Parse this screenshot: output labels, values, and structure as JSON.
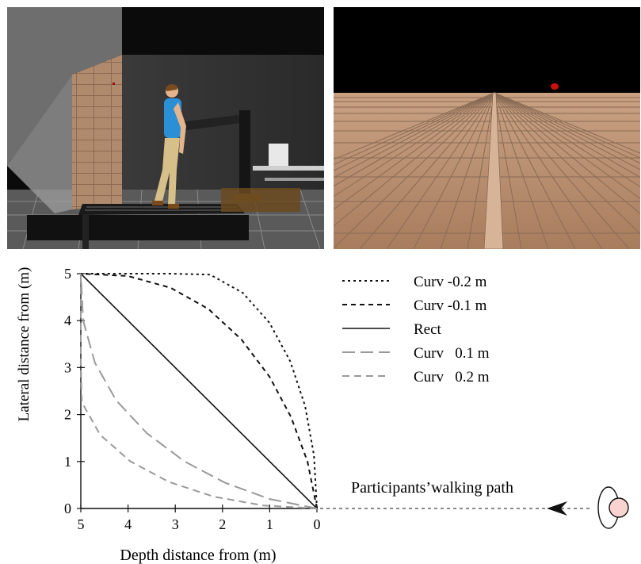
{
  "chart_data": {
    "type": "line",
    "xlabel": "Depth distance from  (m)",
    "ylabel": "Lateral distance from  (m)",
    "x_ticks": [
      "5",
      "4",
      "3",
      "2",
      "1",
      "0"
    ],
    "y_ticks": [
      "0",
      "1",
      "2",
      "3",
      "4",
      "5"
    ],
    "xlim": [
      5,
      0
    ],
    "ylim": [
      0,
      5
    ],
    "legend_position": "top-right",
    "series": [
      {
        "name": "Curv -0.2 m",
        "style": "short-dash",
        "color": "#111111",
        "x": [
          0,
          0.063,
          0.251,
          0.565,
          1.005,
          1.57,
          2.261,
          3.077,
          4.019,
          5
        ],
        "y": [
          0,
          1.133,
          2.185,
          3.133,
          3.954,
          4.592,
          4.979,
          5.0,
          5.0,
          5
        ]
      },
      {
        "name": "Curv -0.1 m",
        "style": "dash",
        "color": "#111111",
        "x": [
          0,
          0.2,
          0.55,
          1.0,
          1.6,
          2.3,
          3.1,
          4.0,
          5
        ],
        "y": [
          0,
          1.0,
          1.95,
          2.8,
          3.6,
          4.25,
          4.7,
          4.95,
          5
        ]
      },
      {
        "name": "Rect",
        "style": "solid",
        "color": "#111111",
        "x": [
          0,
          5
        ],
        "y": [
          0,
          5
        ]
      },
      {
        "name": "Curv   0.1 m",
        "style": "long-dash",
        "color": "#9a9a9a",
        "x": [
          0,
          1.0,
          1.95,
          2.8,
          3.6,
          4.25,
          4.7,
          4.95,
          5
        ],
        "y": [
          0,
          0.2,
          0.55,
          1.0,
          1.6,
          2.3,
          3.1,
          4.0,
          5
        ]
      },
      {
        "name": "Curv   0.2 m",
        "style": "medium-dash",
        "color": "#9a9a9a",
        "x": [
          0,
          1.133,
          2.185,
          3.133,
          3.954,
          4.592,
          4.979,
          5.0,
          5.0,
          5
        ],
        "y": [
          0,
          0.063,
          0.251,
          0.565,
          1.005,
          1.57,
          2.261,
          3.077,
          4.019,
          5
        ]
      }
    ]
  },
  "annotation": {
    "walking_path_label": "Participants’walking path"
  },
  "colors": {
    "floor_tile": "#b98e6e",
    "participant_marker": "#f8d3d0",
    "red_target": "#cc1010"
  }
}
